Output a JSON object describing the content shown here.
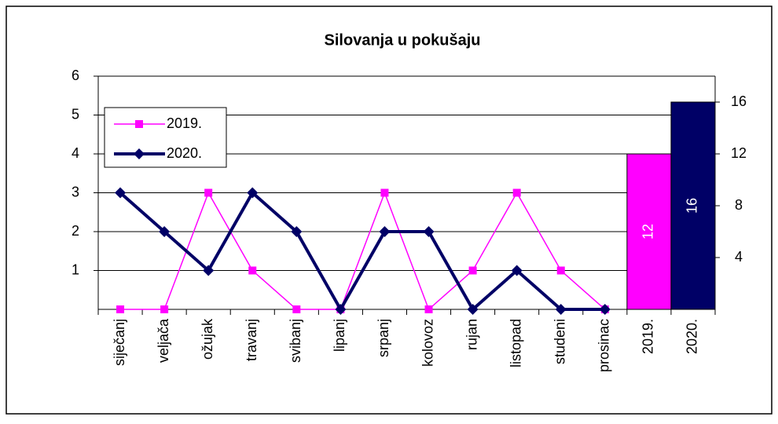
{
  "chart_data": {
    "type": "line",
    "title": "Silovanja u pokušaju",
    "categories": [
      "siječanj",
      "veljača",
      "ožujak",
      "travanj",
      "svibanj",
      "lipanj",
      "srpanj",
      "kolovoz",
      "rujan",
      "listopad",
      "studeni",
      "prosinac"
    ],
    "series": [
      {
        "name": "2019.",
        "color": "#ff00ff",
        "marker": "square",
        "values": [
          0,
          0,
          3,
          1,
          0,
          0,
          3,
          0,
          1,
          3,
          1,
          0
        ]
      },
      {
        "name": "2020.",
        "color": "#000066",
        "marker": "diamond",
        "values": [
          3,
          2,
          1,
          3,
          2,
          0,
          2,
          2,
          0,
          1,
          0,
          0
        ]
      }
    ],
    "ylim": [
      0,
      6
    ],
    "yticks": [
      1,
      2,
      3,
      4,
      5,
      6
    ],
    "bars": {
      "type": "bar",
      "axis": "y2",
      "categories": [
        "2019.",
        "2020."
      ],
      "values": [
        12,
        16
      ],
      "colors": [
        "#ff00ff",
        "#000066"
      ]
    },
    "y2lim": [
      0,
      18
    ],
    "y2ticks": [
      4,
      8,
      12,
      16
    ],
    "grid": true,
    "legend": "top-left"
  }
}
